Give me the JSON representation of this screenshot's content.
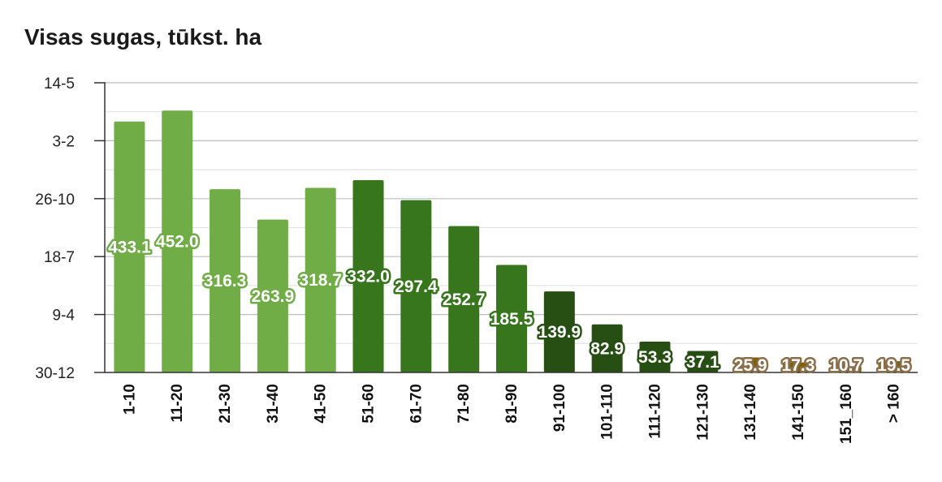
{
  "chart_data": {
    "type": "bar",
    "title": "Visas sugas, tūkst. ha",
    "xlabel": "",
    "ylabel": "",
    "categories": [
      "1-10",
      "11-20",
      "21-30",
      "31-40",
      "41-50",
      "51-60",
      "61-70",
      "71-80",
      "81-90",
      "91-100",
      "101-110",
      "111-120",
      "121-130",
      "131-140",
      "141-150",
      "151_160",
      "> 160"
    ],
    "values": [
      433.1,
      452.0,
      316.3,
      263.9,
      318.7,
      332.0,
      297.4,
      252.7,
      185.5,
      139.9,
      82.9,
      53.3,
      37.1,
      25.9,
      17.3,
      10.7,
      19.5
    ],
    "value_labels": [
      "433.1",
      "452.0",
      "316.3",
      "263.9",
      "318.7",
      "332.0",
      "297.4",
      "252.7",
      "185.5",
      "139.9",
      "82.9",
      "53.3",
      "37.1",
      "25.9",
      "17.3",
      "10.7",
      "19.5"
    ],
    "y_tick_labels": [
      "30-12",
      "9-4",
      "18-7",
      "26-10",
      "3-2",
      "14-5"
    ],
    "ylim": [
      0,
      500
    ],
    "grid": true,
    "legend": "none",
    "bar_colors": [
      "#70ad47",
      "#70ad47",
      "#70ad47",
      "#70ad47",
      "#70ad47",
      "#38761d",
      "#38761d",
      "#38761d",
      "#38761d",
      "#274e13",
      "#274e13",
      "#274e13",
      "#274e13",
      "#7f6000",
      "#7f6000",
      "#7f6000",
      "#7f6000"
    ],
    "label_outline_colors": [
      "#70ad47",
      "#70ad47",
      "#70ad47",
      "#70ad47",
      "#70ad47",
      "#38761d",
      "#38761d",
      "#38761d",
      "#38761d",
      "#274e13",
      "#274e13",
      "#274e13",
      "#274e13",
      "#8a6d4b",
      "#8a6d4b",
      "#8a6d4b",
      "#8a6d4b"
    ],
    "colors": {
      "grid": "#cccccc",
      "axis": "#333333"
    }
  }
}
